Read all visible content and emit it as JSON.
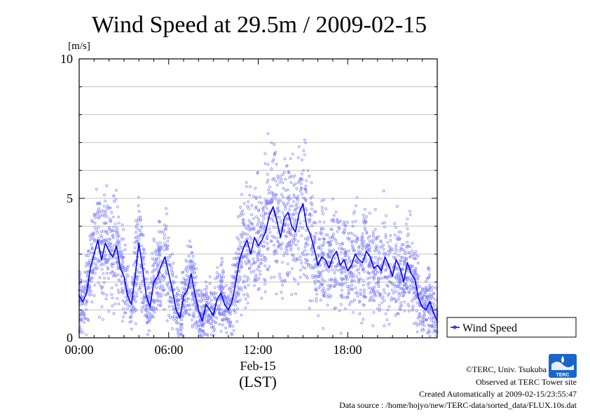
{
  "chart_data": {
    "type": "scatter",
    "title": "Wind Speed at 29.5m / 2009-02-15",
    "ylabel": "[m/s]",
    "ylim": [
      0,
      10
    ],
    "yticks": [
      0,
      5,
      10
    ],
    "xlim": [
      0,
      24
    ],
    "xticks": [
      {
        "x": 0,
        "label": "00:00"
      },
      {
        "x": 6,
        "label": "06:00"
      },
      {
        "x": 12,
        "label": "12:00"
      },
      {
        "x": 18,
        "label": "18:00"
      }
    ],
    "date_label": "Feb-15",
    "timezone_label": "(LST)",
    "grid": true,
    "legend_position": "right",
    "series": [
      {
        "name": "Wind Speed",
        "color": "#0000ff",
        "point_color": "#8080ff",
        "x_unit": "hours",
        "x": [
          0.0,
          0.25,
          0.5,
          0.75,
          1.0,
          1.25,
          1.5,
          1.75,
          2.0,
          2.25,
          2.5,
          2.75,
          3.0,
          3.25,
          3.5,
          3.75,
          4.0,
          4.25,
          4.5,
          4.75,
          5.0,
          5.25,
          5.5,
          5.75,
          6.0,
          6.25,
          6.5,
          6.75,
          7.0,
          7.25,
          7.5,
          7.75,
          8.0,
          8.25,
          8.5,
          8.75,
          9.0,
          9.25,
          9.5,
          9.75,
          10.0,
          10.25,
          10.5,
          10.75,
          11.0,
          11.25,
          11.5,
          11.75,
          12.0,
          12.25,
          12.5,
          12.75,
          13.0,
          13.25,
          13.5,
          13.75,
          14.0,
          14.25,
          14.5,
          14.75,
          15.0,
          15.25,
          15.5,
          15.75,
          16.0,
          16.25,
          16.5,
          16.75,
          17.0,
          17.25,
          17.5,
          17.75,
          18.0,
          18.25,
          18.5,
          18.75,
          19.0,
          19.25,
          19.5,
          19.75,
          20.0,
          20.25,
          20.5,
          20.75,
          21.0,
          21.25,
          21.5,
          21.75,
          22.0,
          22.25,
          22.5,
          22.75,
          23.0,
          23.25,
          23.5,
          23.75,
          24.0
        ],
        "y": [
          1.5,
          1.3,
          1.6,
          2.5,
          3.0,
          3.5,
          2.8,
          3.4,
          3.1,
          2.9,
          3.3,
          2.5,
          2.2,
          1.5,
          1.2,
          2.2,
          3.4,
          2.5,
          1.5,
          1.1,
          2.0,
          2.2,
          2.6,
          2.9,
          2.3,
          1.7,
          1.0,
          0.7,
          1.5,
          1.7,
          2.3,
          1.6,
          1.0,
          0.6,
          1.2,
          1.0,
          0.8,
          1.4,
          1.6,
          1.2,
          1.0,
          1.3,
          2.0,
          2.8,
          3.2,
          3.5,
          3.0,
          3.6,
          3.3,
          3.5,
          3.8,
          4.4,
          4.7,
          4.2,
          3.6,
          4.3,
          4.5,
          4.0,
          3.8,
          4.5,
          4.8,
          4.0,
          3.7,
          3.2,
          2.6,
          2.9,
          2.8,
          2.5,
          2.9,
          3.1,
          2.6,
          2.8,
          2.4,
          2.6,
          3.0,
          2.8,
          2.7,
          3.1,
          2.9,
          2.5,
          2.6,
          2.4,
          2.9,
          2.6,
          2.2,
          2.8,
          2.5,
          2.0,
          2.7,
          2.3,
          2.1,
          1.4,
          1.1,
          1.0,
          1.3,
          0.9,
          0.6
        ]
      }
    ]
  },
  "legend": {
    "label": "Wind Speed"
  },
  "footer": {
    "copyright": "©TERC, Univ. Tsukuba",
    "observed": "Observed at TERC Tower site",
    "created": "Created Automatically at 2009-02-15/23:55:47",
    "source": "Data source : /home/hojyo/new/TERC-data/sorted_data/FLUX.10s.dat"
  },
  "logo": {
    "text": "TERC",
    "color": "#1a66c8"
  }
}
